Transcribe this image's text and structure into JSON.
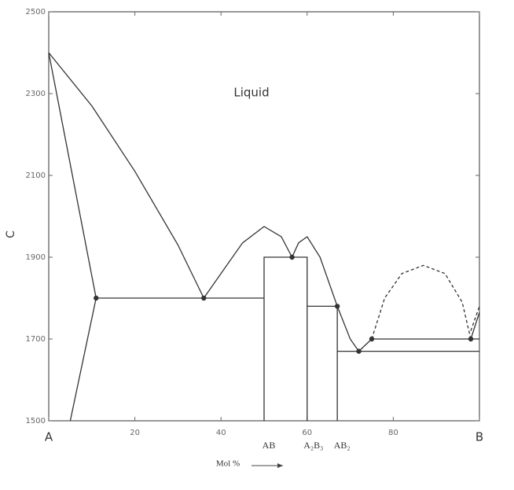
{
  "chart_data": {
    "type": "line",
    "title": "Liquid",
    "ylabel": "C",
    "xlabel": "Mol %",
    "xlim": [
      0,
      100
    ],
    "ylim": [
      1500,
      2500
    ],
    "xticks": [
      {
        "value": 0,
        "label": "A"
      },
      20,
      40,
      60,
      80,
      {
        "value": 100,
        "label": "B"
      }
    ],
    "yticks": [
      1500,
      1700,
      1900,
      2100,
      2300,
      2500
    ],
    "color": "#333333",
    "compounds": [
      {
        "label": "AB",
        "x": 50
      },
      {
        "label": "A₂B₃",
        "x": 60
      },
      {
        "label": "AB₂",
        "x": 67
      }
    ],
    "series": [
      {
        "x": [
          0,
          10,
          20,
          30,
          36
        ],
        "values": [
          2400,
          2270,
          2110,
          1930,
          1800
        ],
        "style": "solid"
      },
      {
        "x": [
          0,
          11
        ],
        "values": [
          2400,
          1800
        ],
        "style": "solid"
      },
      {
        "x": [
          11,
          5
        ],
        "values": [
          1800,
          1500
        ],
        "style": "solid"
      },
      {
        "x": [
          11,
          50
        ],
        "values": [
          1800,
          1800
        ],
        "style": "solid"
      },
      {
        "x": [
          36,
          40,
          45,
          50,
          54,
          56.5
        ],
        "values": [
          1800,
          1860,
          1935,
          1975,
          1950,
          1900
        ],
        "style": "solid"
      },
      {
        "x": [
          56.5,
          58,
          60,
          63,
          67,
          70,
          72
        ],
        "values": [
          1900,
          1935,
          1950,
          1900,
          1780,
          1700,
          1670
        ],
        "style": "solid"
      },
      {
        "x": [
          50,
          50,
          60,
          60
        ],
        "values": [
          1500,
          1900,
          1900,
          1500
        ],
        "style": "solid"
      },
      {
        "x": [
          60,
          67,
          67
        ],
        "values": [
          1780,
          1780,
          1500
        ],
        "style": "solid"
      },
      {
        "x": [
          67,
          100
        ],
        "values": [
          1670,
          1670
        ],
        "style": "solid"
      },
      {
        "x": [
          72,
          75
        ],
        "values": [
          1670,
          1700
        ],
        "style": "solid"
      },
      {
        "x": [
          98,
          100
        ],
        "values": [
          1700,
          1765
        ],
        "style": "solid"
      },
      {
        "x": [
          75,
          100
        ],
        "values": [
          1700,
          1700
        ],
        "style": "solid"
      },
      {
        "x": [
          75,
          78,
          82,
          87,
          92,
          96,
          98
        ],
        "values": [
          1700,
          1800,
          1860,
          1880,
          1860,
          1790,
          1700
        ],
        "style": "dashed"
      },
      {
        "x": [
          98,
          100
        ],
        "values": [
          1720,
          1780
        ],
        "style": "dashed"
      }
    ],
    "points": {
      "x": [
        11,
        36,
        56.5,
        67,
        72,
        75,
        98
      ],
      "values": [
        1800,
        1800,
        1900,
        1780,
        1670,
        1700,
        1700
      ]
    }
  }
}
